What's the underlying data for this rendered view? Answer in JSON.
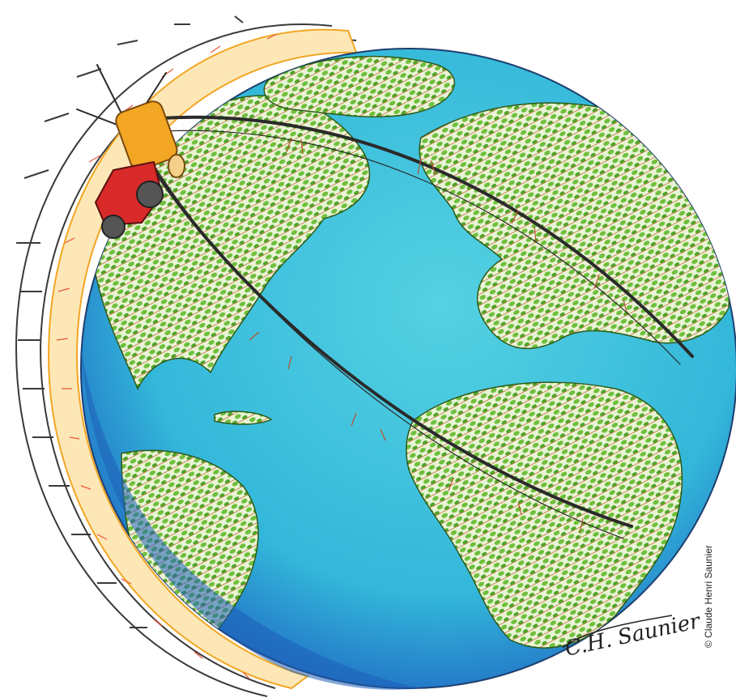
{
  "credit": {
    "text": "© Claude Henri Saunier"
  },
  "signature": {
    "text": "C.H. Saunier"
  },
  "colors": {
    "ocean": "#35c3d9",
    "ocean_deep": "#2370c8",
    "land": "#7cc142",
    "land_dark": "#3f8a1c",
    "furrow": "#b5502e",
    "tractor": "#d92a2a",
    "tank": "#f2a623",
    "ring_glow": "#f6b23a",
    "frame": "#3a3a3a"
  }
}
